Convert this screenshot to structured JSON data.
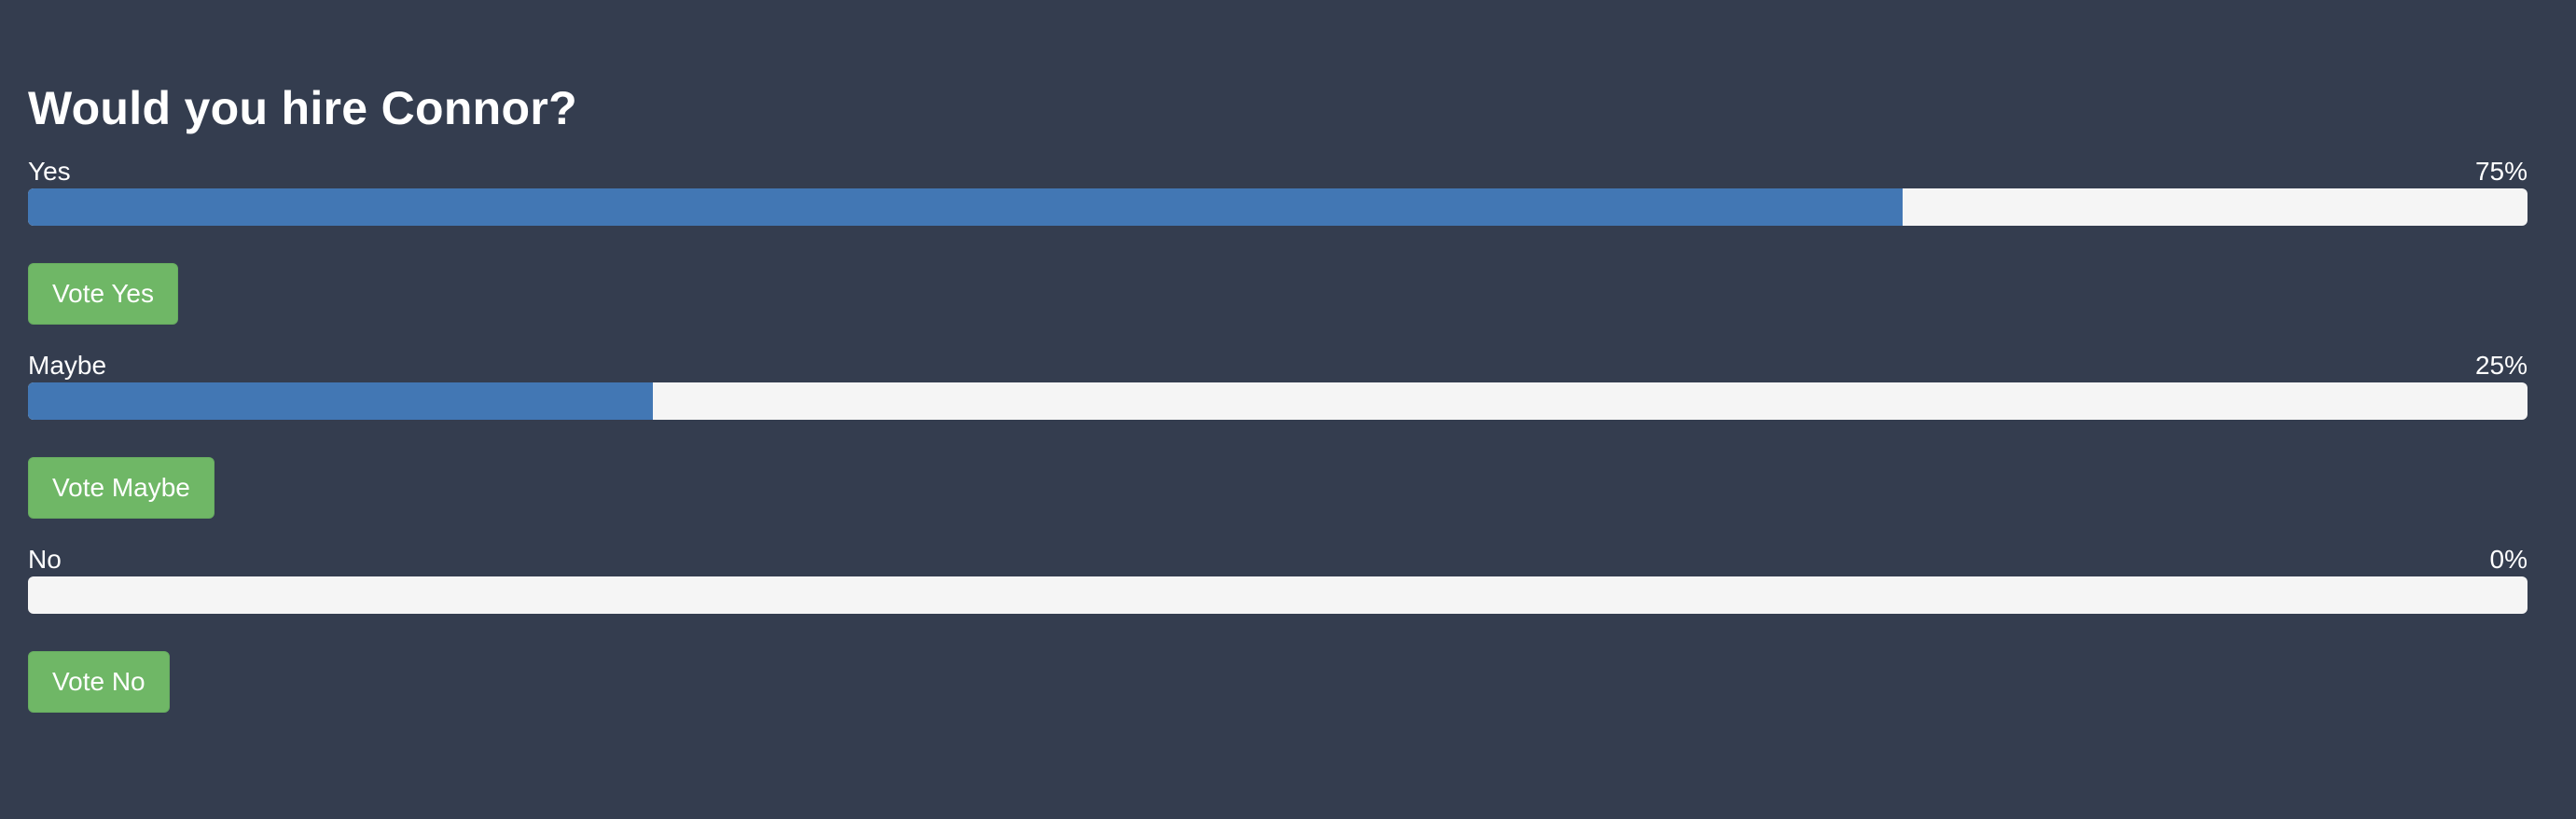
{
  "poll": {
    "question": "Would you hire Connor?",
    "options": [
      {
        "label": "Yes",
        "percent_text": "75%",
        "percent": 75,
        "button_label": "Vote Yes"
      },
      {
        "label": "Maybe",
        "percent_text": "25%",
        "percent": 25,
        "button_label": "Vote Maybe"
      },
      {
        "label": "No",
        "percent_text": "0%",
        "percent": 0,
        "button_label": "Vote No"
      }
    ]
  },
  "colors": {
    "background": "#343d4f",
    "bar_fill": "#4277b4",
    "bar_track": "#f5f5f5",
    "button": "#6fb766"
  }
}
